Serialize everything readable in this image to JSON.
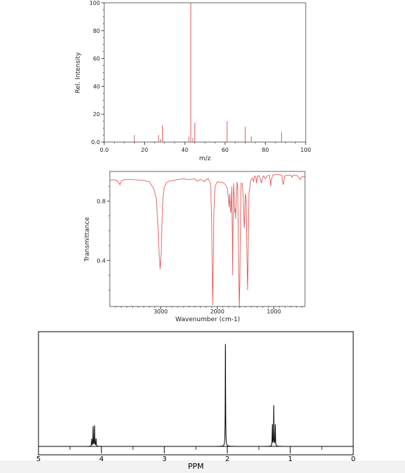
{
  "page": {
    "background_color": "#ffffff",
    "bottom_strip_color": "#f2f2f2"
  },
  "chart_data": [
    {
      "type": "bar",
      "subtype": "mass-spectrum",
      "xlabel": "m/z",
      "ylabel": "Rel. Intensity",
      "xlim": [
        0,
        100
      ],
      "ylim": [
        0,
        100
      ],
      "xticks": [
        0,
        20,
        40,
        60,
        80,
        100
      ],
      "xtick_labels": [
        "0.0",
        "20",
        "40",
        "60",
        "80",
        "100"
      ],
      "yticks": [
        0,
        20,
        40,
        60,
        80,
        100
      ],
      "ytick_labels": [
        "0.0",
        "20",
        "40",
        "60",
        "80",
        "100"
      ],
      "grid": false,
      "line_color": "#e05a5a",
      "peaks": [
        {
          "mz": 15,
          "intensity": 5
        },
        {
          "mz": 27,
          "intensity": 5
        },
        {
          "mz": 28,
          "intensity": 2
        },
        {
          "mz": 29,
          "intensity": 12
        },
        {
          "mz": 42,
          "intensity": 4
        },
        {
          "mz": 43,
          "intensity": 100
        },
        {
          "mz": 44,
          "intensity": 3
        },
        {
          "mz": 45,
          "intensity": 14
        },
        {
          "mz": 61,
          "intensity": 15
        },
        {
          "mz": 70,
          "intensity": 11
        },
        {
          "mz": 73,
          "intensity": 4
        },
        {
          "mz": 88,
          "intensity": 7
        }
      ]
    },
    {
      "type": "line",
      "subtype": "ir-spectrum",
      "xlabel": "Wavenumber (cm-1)",
      "ylabel": "Transmittance",
      "xlim": [
        3900,
        450
      ],
      "ylim": [
        0.09,
        1.0
      ],
      "xticks": [
        3000,
        2000,
        1000
      ],
      "xtick_labels": [
        "3000",
        "2000",
        "1000"
      ],
      "yticks": [
        0.4,
        0.8
      ],
      "ytick_labels": [
        "0.4",
        "0.8"
      ],
      "grid": false,
      "line_color": "#e05a5a",
      "points": [
        [
          3900,
          0.94
        ],
        [
          3820,
          0.945
        ],
        [
          3760,
          0.935
        ],
        [
          3720,
          0.91
        ],
        [
          3700,
          0.935
        ],
        [
          3640,
          0.945
        ],
        [
          3500,
          0.945
        ],
        [
          3300,
          0.94
        ],
        [
          3200,
          0.93
        ],
        [
          3120,
          0.88
        ],
        [
          3080,
          0.82
        ],
        [
          3050,
          0.65
        ],
        [
          3030,
          0.45
        ],
        [
          3010,
          0.34
        ],
        [
          2995,
          0.44
        ],
        [
          2980,
          0.62
        ],
        [
          2960,
          0.82
        ],
        [
          2940,
          0.89
        ],
        [
          2900,
          0.925
        ],
        [
          2850,
          0.935
        ],
        [
          2700,
          0.945
        ],
        [
          2600,
          0.95
        ],
        [
          2500,
          0.945
        ],
        [
          2400,
          0.95
        ],
        [
          2350,
          0.935
        ],
        [
          2300,
          0.945
        ],
        [
          2250,
          0.94
        ],
        [
          2230,
          0.93
        ],
        [
          2200,
          0.945
        ],
        [
          2160,
          0.95
        ],
        [
          2120,
          0.92
        ],
        [
          2100,
          0.7
        ],
        [
          2090,
          0.35
        ],
        [
          2080,
          0.1
        ],
        [
          2070,
          0.35
        ],
        [
          2060,
          0.72
        ],
        [
          2040,
          0.9
        ],
        [
          2000,
          0.93
        ],
        [
          1900,
          0.925
        ],
        [
          1850,
          0.91
        ],
        [
          1820,
          0.88
        ],
        [
          1800,
          0.8
        ],
        [
          1790,
          0.76
        ],
        [
          1780,
          0.85
        ],
        [
          1770,
          0.75
        ],
        [
          1760,
          0.72
        ],
        [
          1750,
          0.83
        ],
        [
          1745,
          0.9
        ],
        [
          1735,
          0.6
        ],
        [
          1728,
          0.3
        ],
        [
          1722,
          0.62
        ],
        [
          1712,
          0.92
        ],
        [
          1700,
          0.83
        ],
        [
          1690,
          0.72
        ],
        [
          1682,
          0.75
        ],
        [
          1675,
          0.68
        ],
        [
          1668,
          0.8
        ],
        [
          1650,
          0.93
        ],
        [
          1640,
          0.9
        ],
        [
          1630,
          0.6
        ],
        [
          1620,
          0.3
        ],
        [
          1610,
          0.08
        ],
        [
          1600,
          0.3
        ],
        [
          1590,
          0.7
        ],
        [
          1580,
          0.92
        ],
        [
          1560,
          0.92
        ],
        [
          1545,
          0.85
        ],
        [
          1532,
          0.72
        ],
        [
          1525,
          0.62
        ],
        [
          1518,
          0.66
        ],
        [
          1505,
          0.85
        ],
        [
          1490,
          0.82
        ],
        [
          1475,
          0.4
        ],
        [
          1465,
          0.2
        ],
        [
          1455,
          0.42
        ],
        [
          1440,
          0.85
        ],
        [
          1410,
          0.94
        ],
        [
          1380,
          0.955
        ],
        [
          1360,
          0.93
        ],
        [
          1340,
          0.97
        ],
        [
          1320,
          0.96
        ],
        [
          1305,
          0.92
        ],
        [
          1290,
          0.97
        ],
        [
          1260,
          0.97
        ],
        [
          1240,
          0.95
        ],
        [
          1220,
          0.92
        ],
        [
          1200,
          0.96
        ],
        [
          1180,
          0.97
        ],
        [
          1150,
          0.95
        ],
        [
          1120,
          0.97
        ],
        [
          1080,
          0.975
        ],
        [
          1065,
          0.94
        ],
        [
          1055,
          0.9
        ],
        [
          1045,
          0.94
        ],
        [
          1020,
          0.975
        ],
        [
          950,
          0.98
        ],
        [
          860,
          0.975
        ],
        [
          845,
          0.93
        ],
        [
          835,
          0.91
        ],
        [
          825,
          0.93
        ],
        [
          810,
          0.97
        ],
        [
          750,
          0.975
        ],
        [
          700,
          0.975
        ],
        [
          680,
          0.96
        ],
        [
          660,
          0.975
        ],
        [
          600,
          0.975
        ],
        [
          560,
          0.96
        ],
        [
          540,
          0.945
        ],
        [
          520,
          0.955
        ],
        [
          500,
          0.965
        ],
        [
          460,
          0.965
        ],
        [
          450,
          0.96
        ]
      ]
    },
    {
      "type": "line",
      "subtype": "nmr-spectrum",
      "xlabel": "PPM",
      "ylabel": "",
      "xlim": [
        5,
        0
      ],
      "ylim": [
        0,
        1
      ],
      "xticks": [
        5,
        4,
        3,
        2,
        1,
        0
      ],
      "xtick_labels": [
        "5",
        "4",
        "3",
        "2",
        "1",
        "0"
      ],
      "grid": false,
      "line_color": "#000000",
      "peaks": [
        {
          "ppm": 4.155,
          "height": 0.07
        },
        {
          "ppm": 4.132,
          "height": 0.19
        },
        {
          "ppm": 4.108,
          "height": 0.19
        },
        {
          "ppm": 4.085,
          "height": 0.07
        },
        {
          "ppm": 2.03,
          "height": 1.0
        },
        {
          "ppm": 1.285,
          "height": 0.2
        },
        {
          "ppm": 1.262,
          "height": 0.38
        },
        {
          "ppm": 1.238,
          "height": 0.2
        }
      ]
    }
  ]
}
